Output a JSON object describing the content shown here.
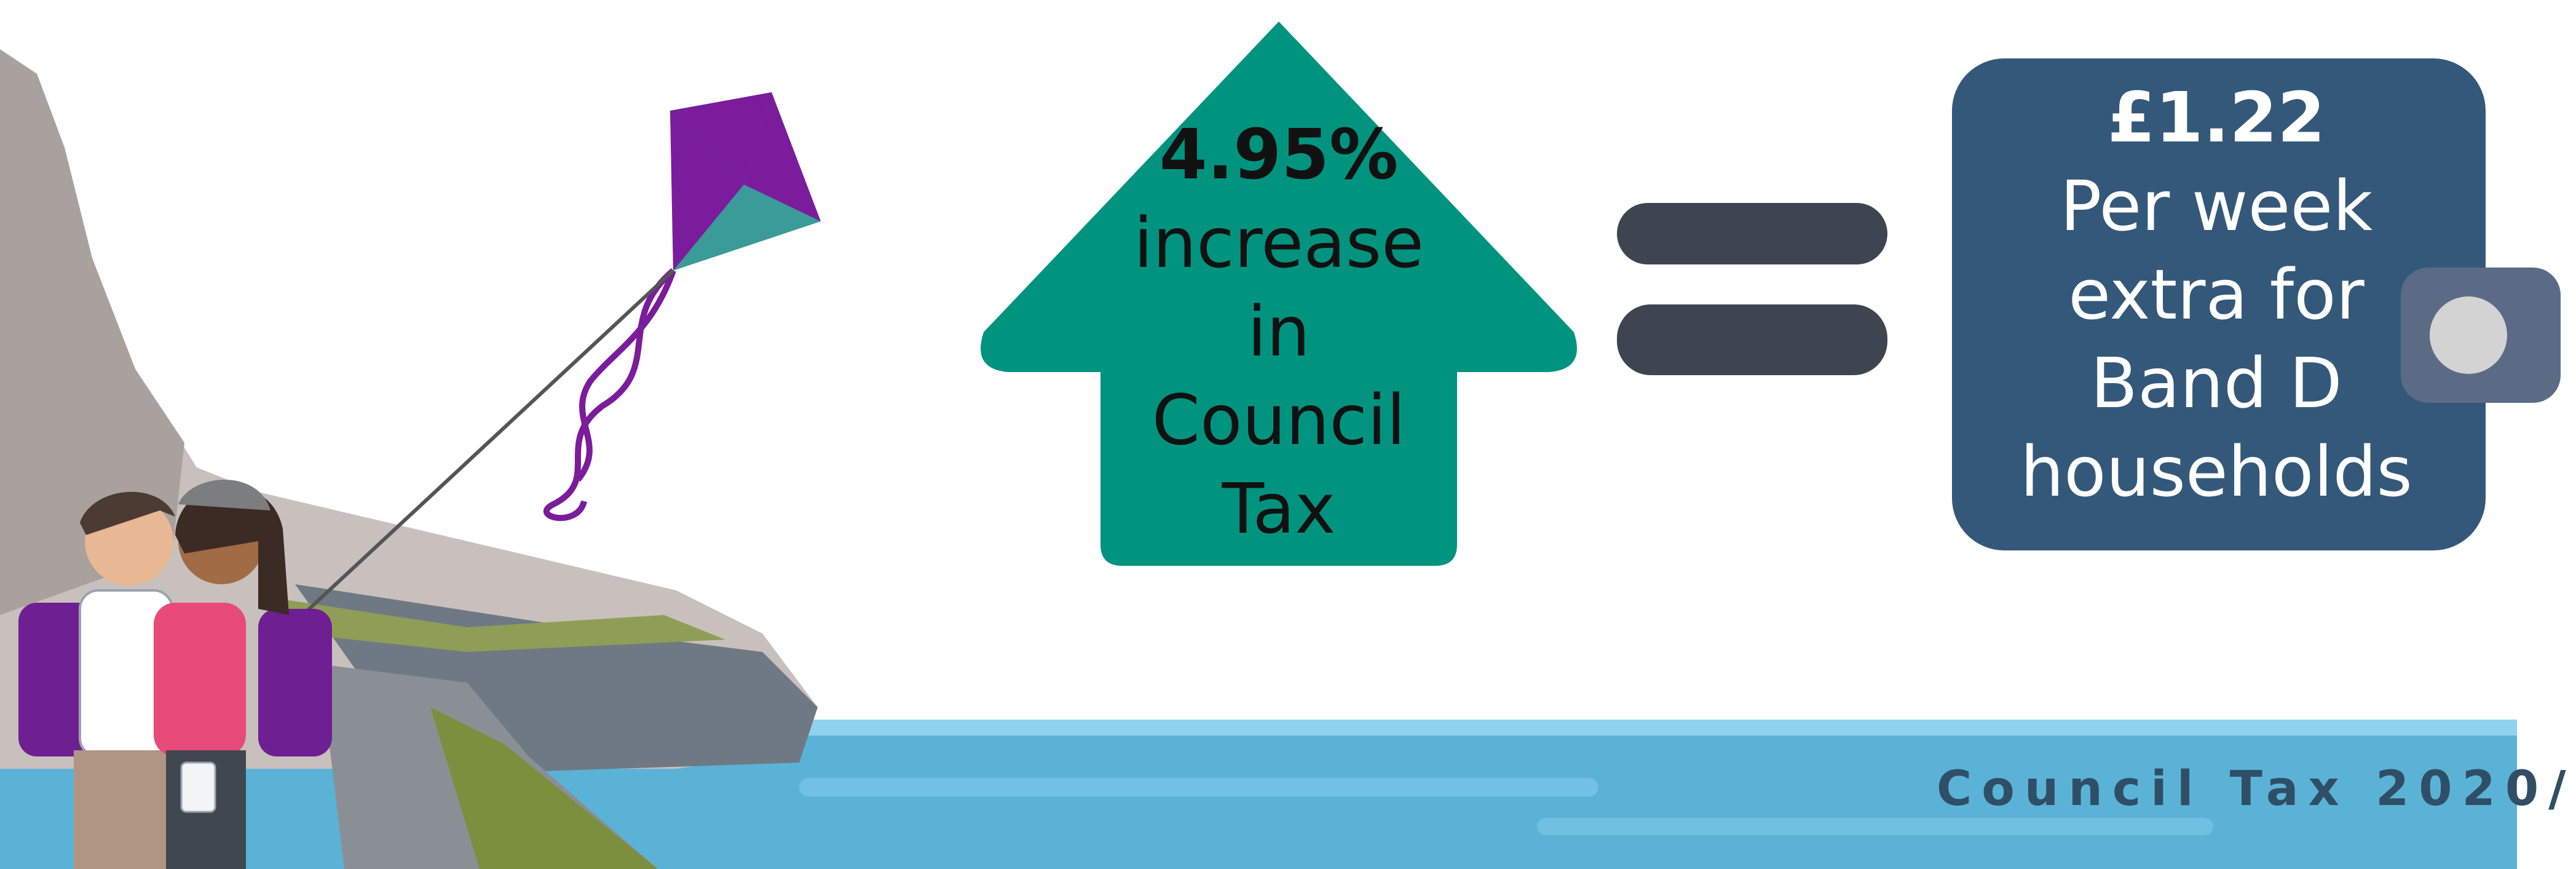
{
  "colors": {
    "arrow_green": "#009480",
    "box_blue": "#33587a",
    "equals_dark": "#3e4550",
    "water": "#5ab3d6",
    "footer_text": "#2f4f66"
  },
  "icons": [
    "kite-icon",
    "equals-icon",
    "arrow-up-icon",
    "toggle-knob-icon"
  ],
  "arrow": {
    "percent": "4.95%",
    "line1": "increase",
    "line2": "in",
    "line3": "Council",
    "line4": "Tax"
  },
  "box": {
    "amount": "£1.22",
    "line1": "Per week",
    "line2": "extra for",
    "line3": "Band D",
    "line4": "households"
  },
  "footer": {
    "label": "Council Tax 2020/"
  }
}
